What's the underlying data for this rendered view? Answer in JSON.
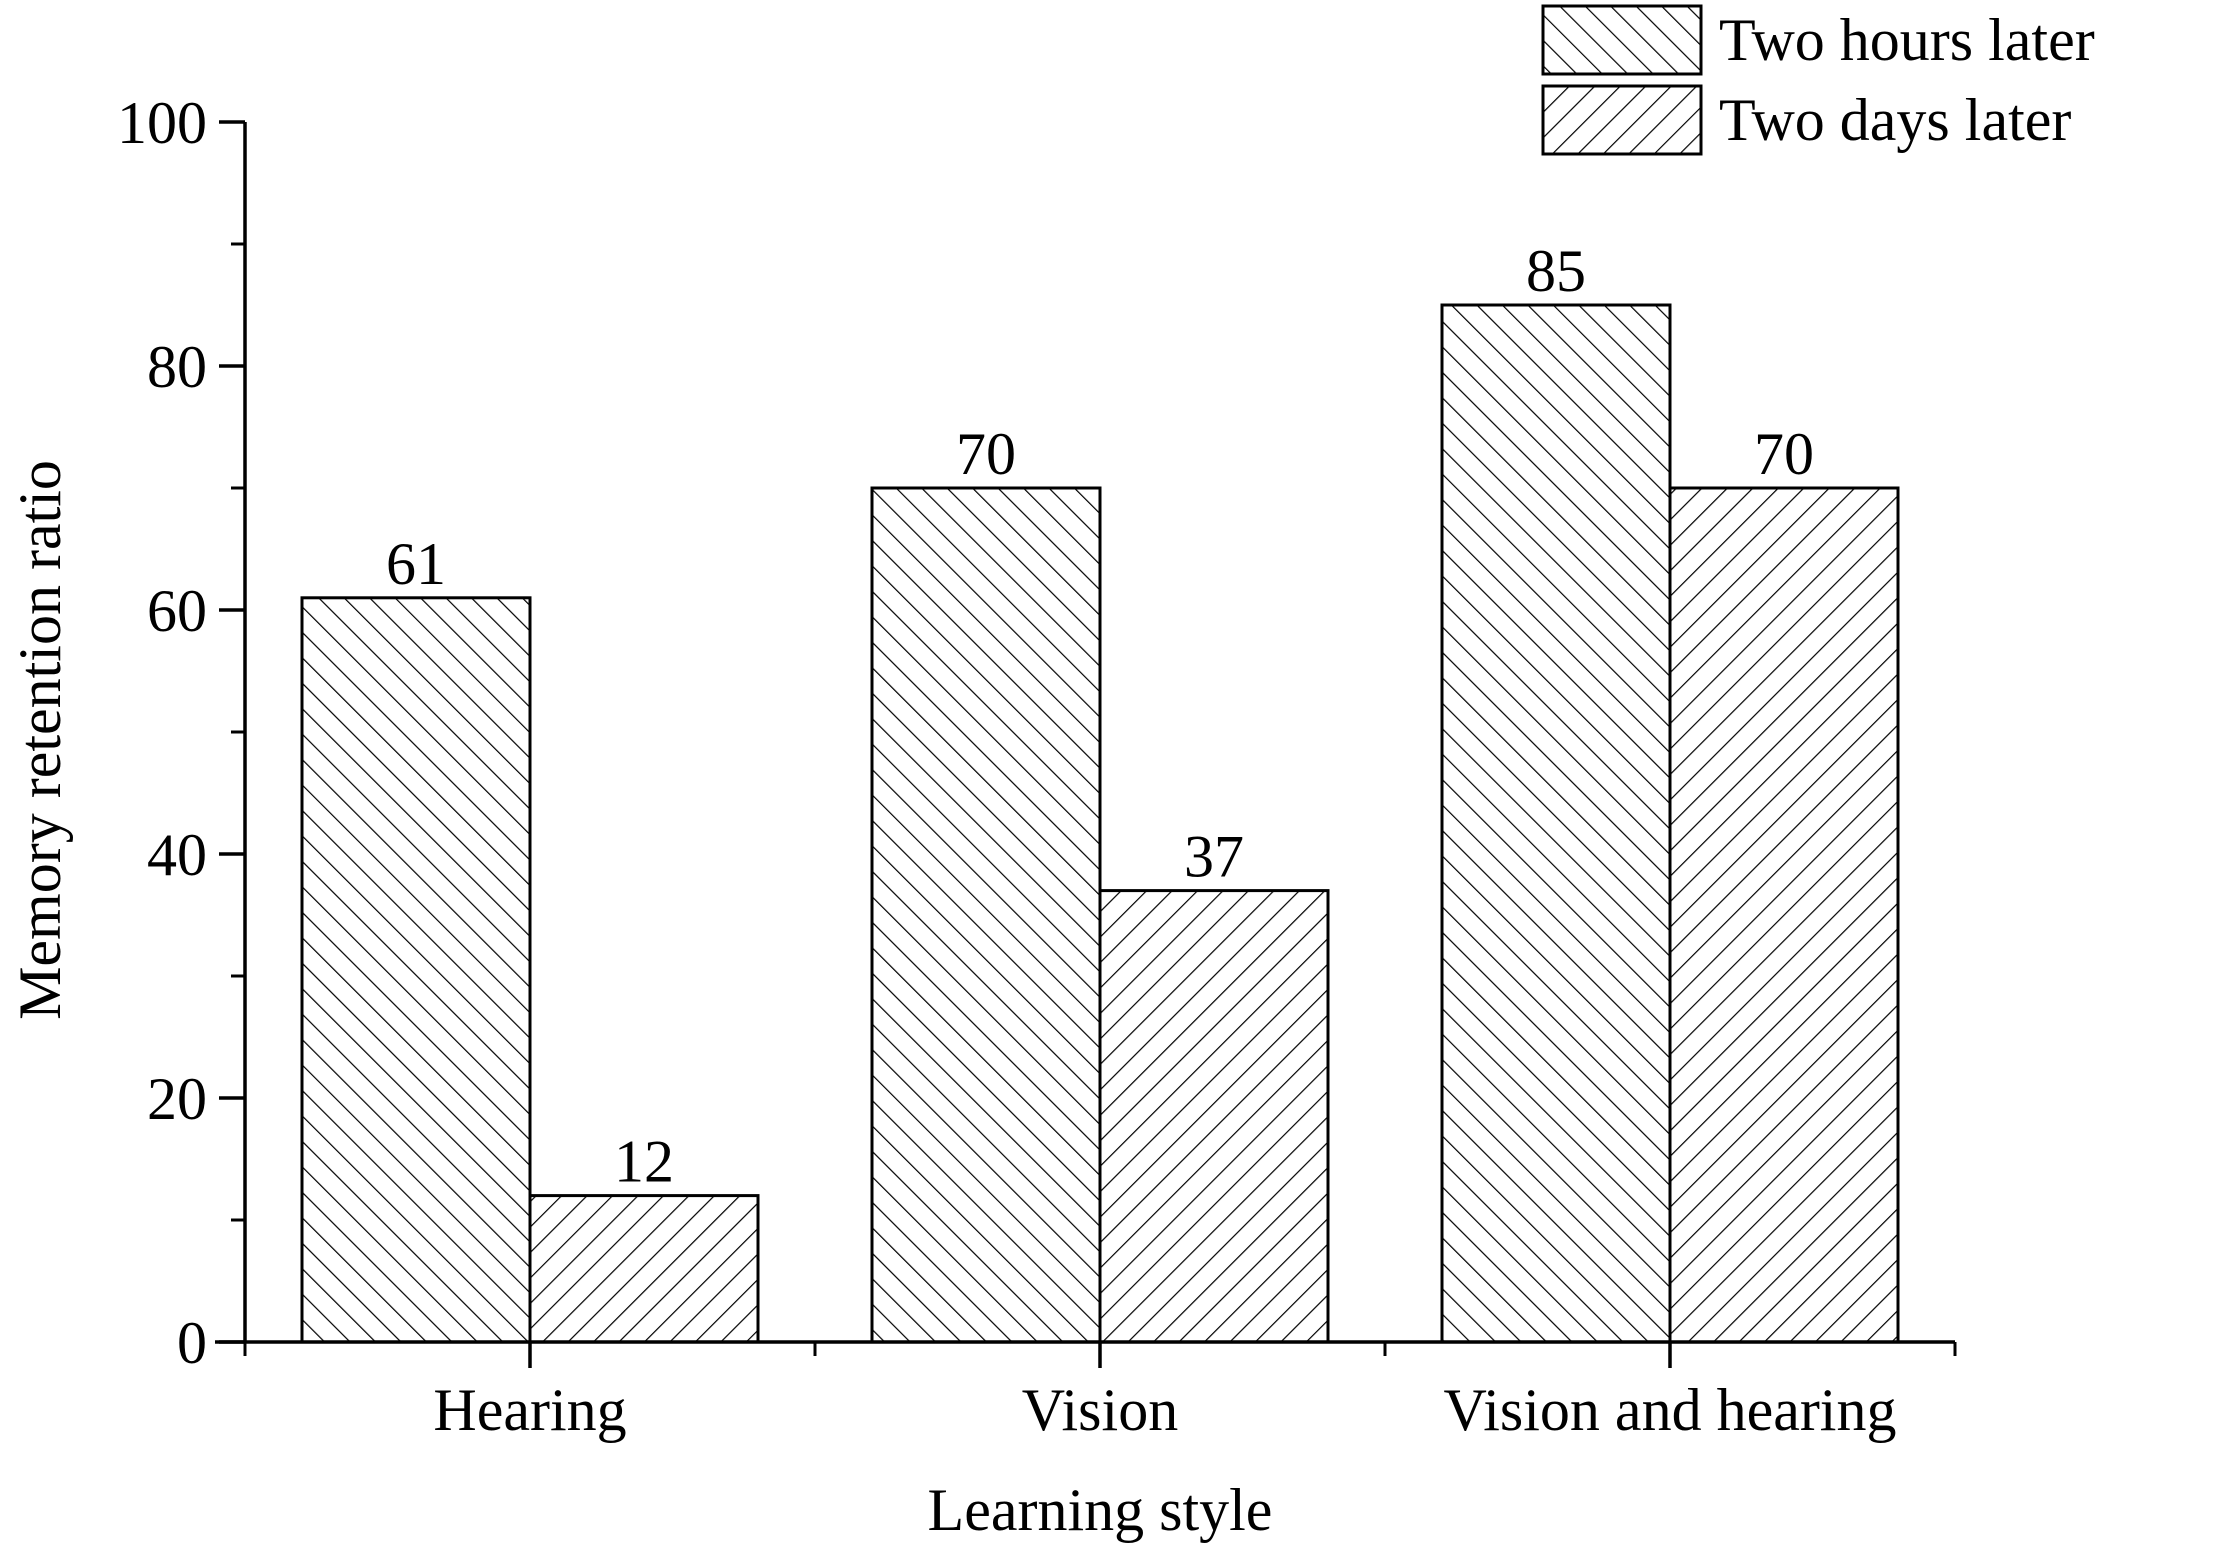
{
  "chart_data": {
    "type": "bar",
    "title": "",
    "xlabel": "Learning style",
    "ylabel": "Memory retention ratio",
    "categories": [
      "Hearing",
      "Vision",
      "Vision and hearing"
    ],
    "ylim": [
      0,
      100
    ],
    "yticks": [
      0,
      20,
      40,
      60,
      80,
      100
    ],
    "grid": false,
    "legend_position": "top-right",
    "series": [
      {
        "name": "Two hours later",
        "values": [
          61,
          70,
          85
        ],
        "pattern": "forward-diagonal-hatch",
        "color": "#000000"
      },
      {
        "name": "Two days later",
        "values": [
          12,
          37,
          70
        ],
        "pattern": "back-diagonal-hatch",
        "color": "#000000"
      }
    ],
    "data_labels": [
      [
        "61",
        "70",
        "85"
      ],
      [
        "12",
        "37",
        "70"
      ]
    ],
    "background": "#ffffff"
  }
}
